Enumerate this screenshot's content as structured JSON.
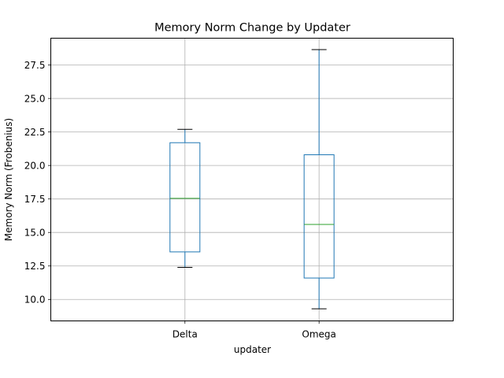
{
  "chart_data": {
    "type": "box",
    "title": "Memory Norm Change by Updater",
    "xlabel": "updater",
    "ylabel": "Memory Norm (Frobenius)",
    "ylim": [
      8.4,
      29.5
    ],
    "yticks": [
      10.0,
      12.5,
      15.0,
      17.5,
      20.0,
      22.5,
      25.0,
      27.5
    ],
    "ytick_labels": [
      "10.0",
      "12.5",
      "15.0",
      "17.5",
      "20.0",
      "22.5",
      "25.0",
      "27.5"
    ],
    "grid": true,
    "categories": [
      "Delta",
      "Omega"
    ],
    "boxes": [
      {
        "category": "Delta",
        "whisker_low": 12.4,
        "q1": 13.55,
        "median": 17.55,
        "q3": 21.7,
        "whisker_high": 22.7
      },
      {
        "category": "Omega",
        "whisker_low": 9.3,
        "q1": 11.6,
        "median": 15.6,
        "q3": 20.8,
        "whisker_high": 28.65
      }
    ],
    "colors": {
      "box": "#1f77b4",
      "median": "#2ca02c",
      "whisker_cap": "#000000",
      "grid": "#b0b0b0"
    }
  }
}
